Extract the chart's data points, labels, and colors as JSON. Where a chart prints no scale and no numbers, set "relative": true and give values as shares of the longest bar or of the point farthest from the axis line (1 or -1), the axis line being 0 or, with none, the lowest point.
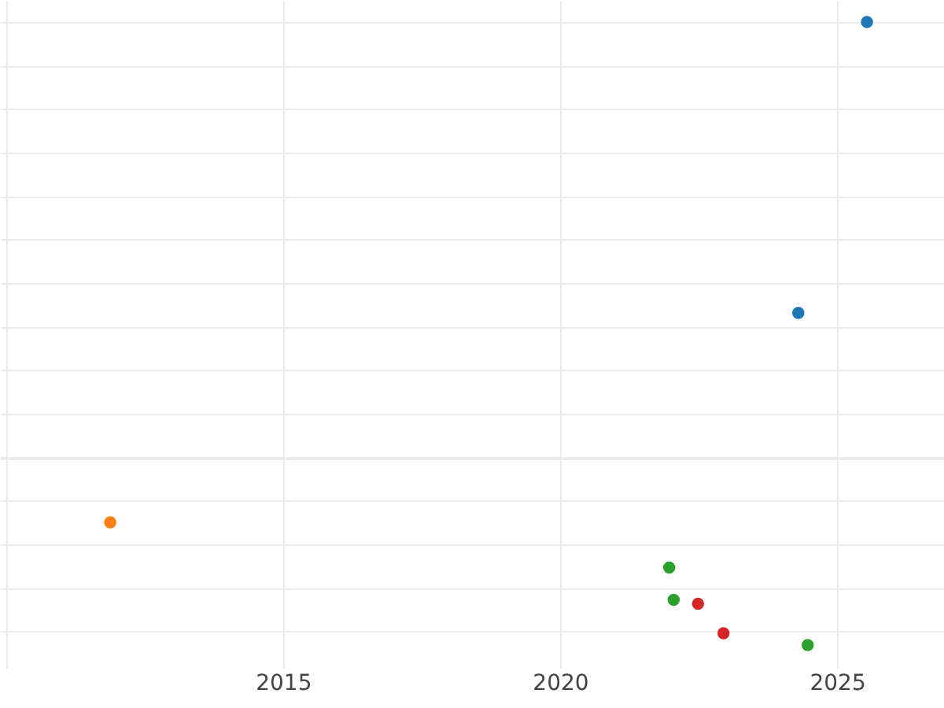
{
  "chart_data": {
    "type": "scatter",
    "relative": true,
    "xlim": [
      2009.89,
      2026.93
    ],
    "xticks": [
      {
        "value": 2010,
        "label": null
      },
      2015,
      2020,
      2025
    ],
    "grid": true,
    "marker": "circle",
    "series": [
      {
        "color": "#1f77b4",
        "x": [
          2025.54,
          2024.3
        ],
        "values": [
          1,
          0.332
        ]
      },
      {
        "color": "#ff7f0e",
        "x": [
          2011.88
        ],
        "values": [
          -0.149
        ]
      },
      {
        "color": "#2ca02c",
        "x": [
          2021.97,
          2022.05,
          2024.47
        ],
        "values": [
          -0.253,
          -0.327,
          -0.431
        ]
      },
      {
        "color": "#d62728",
        "x": [
          2022.49,
          2022.95
        ],
        "values": [
          -0.336,
          -0.404
        ]
      }
    ]
  }
}
